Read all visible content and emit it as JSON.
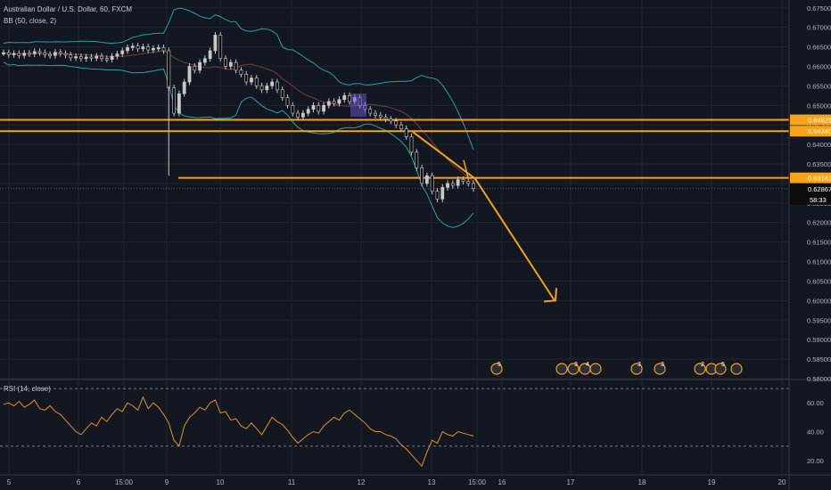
{
  "header": {
    "symbol_title": "Australian Dollar / U.S. Dollar, 60, FXCM",
    "bb_legend": "BB (50, close, 2)",
    "rsi_legend": "RSI (14, close)"
  },
  "colors": {
    "background": "#131722",
    "grid": "#1f2430",
    "axis_text": "#b2b5be",
    "candle": "#c8c8c8",
    "candle_body": "#0d0d0d",
    "bb_band": "#2f9ea1",
    "bb_basis": "#7a3b3b",
    "orange": "#f7a21b",
    "rsi_line": "#e0922a",
    "price_label_bg": "#f7a21b",
    "last_price_bg": "#0d0d0d"
  },
  "chart_data": {
    "type": "candlestick",
    "price_axis": {
      "ticks": [
        "0.67500",
        "0.67000",
        "0.66500",
        "0.66000",
        "0.65500",
        "0.65000",
        "0.64500",
        "0.64000",
        "0.63500",
        "0.63000",
        "0.62500",
        "0.62000",
        "0.61500",
        "0.61000",
        "0.60500",
        "0.60000",
        "0.59500",
        "0.59000",
        "0.58500",
        "0.58000"
      ],
      "range": [
        0.58,
        0.677
      ]
    },
    "time_axis": {
      "ticks": [
        {
          "label": "5",
          "x_index": 0
        },
        {
          "label": "6",
          "x_index": 1
        },
        {
          "label": "15:00",
          "x_index": 2
        },
        {
          "label": "9",
          "x_index": 3
        },
        {
          "label": "10",
          "x_index": 4
        },
        {
          "label": "11",
          "x_index": 5
        },
        {
          "label": "12",
          "x_index": 6
        },
        {
          "label": "13",
          "x_index": 7
        },
        {
          "label": "15:00",
          "x_index": 8
        },
        {
          "label": "16",
          "x_index": 9
        },
        {
          "label": "17",
          "x_index": 10
        },
        {
          "label": "18",
          "x_index": 11
        },
        {
          "label": "19",
          "x_index": 12
        },
        {
          "label": "20",
          "x_index": 13
        }
      ]
    },
    "price_lines": [
      {
        "label": "0.64629",
        "value": 0.64629
      },
      {
        "label": "0.64340",
        "value": 0.6434
      },
      {
        "label": "0.63143",
        "value": 0.63143
      }
    ],
    "last_price": {
      "label": "0.62867",
      "value": 0.62867,
      "countdown": "58:33"
    },
    "projection": {
      "from_price": 0.6432,
      "to_price": 0.6
    },
    "candles_close": [
      0.6635,
      0.663,
      0.6633,
      0.6628,
      0.6634,
      0.6632,
      0.6638,
      0.6635,
      0.663,
      0.6628,
      0.6636,
      0.6633,
      0.6629,
      0.6622,
      0.6625,
      0.662,
      0.6624,
      0.6621,
      0.6626,
      0.662,
      0.6618,
      0.6626,
      0.6632,
      0.664,
      0.6648,
      0.6652,
      0.6645,
      0.665,
      0.6642,
      0.6646,
      0.6648,
      0.664,
      0.6545,
      0.648,
      0.653,
      0.656,
      0.66,
      0.659,
      0.661,
      0.662,
      0.664,
      0.668,
      0.662,
      0.66,
      0.661,
      0.659,
      0.658,
      0.656,
      0.657,
      0.655,
      0.654,
      0.655,
      0.656,
      0.654,
      0.652,
      0.65,
      0.648,
      0.647,
      0.648,
      0.649,
      0.65,
      0.6485,
      0.65,
      0.651,
      0.6505,
      0.6515,
      0.6525,
      0.651,
      0.652,
      0.65,
      0.649,
      0.648,
      0.6475,
      0.647,
      0.6465,
      0.646,
      0.645,
      0.644,
      0.642,
      0.638,
      0.634,
      0.63,
      0.632,
      0.628,
      0.626,
      0.629,
      0.63,
      0.6295,
      0.631,
      0.6305,
      0.63,
      0.6287
    ],
    "rsi": {
      "ticks": [
        "60.00",
        "40.00",
        "20.00"
      ],
      "range": [
        10,
        75
      ],
      "overbought": 70,
      "oversold": 30,
      "values": [
        59,
        60,
        58,
        61,
        57,
        59,
        62,
        56,
        55,
        58,
        54,
        52,
        48,
        44,
        40,
        38,
        42,
        46,
        44,
        50,
        47,
        52,
        56,
        54,
        60,
        58,
        55,
        64,
        56,
        60,
        57,
        52,
        46,
        34,
        30,
        44,
        50,
        53,
        57,
        55,
        60,
        62,
        53,
        54,
        48,
        49,
        44,
        42,
        46,
        42,
        38,
        44,
        50,
        47,
        45,
        41,
        36,
        32,
        35,
        38,
        40,
        39,
        44,
        47,
        50,
        48,
        53,
        55,
        52,
        49,
        46,
        42,
        40,
        40,
        38,
        37,
        35,
        31,
        28,
        24,
        20,
        16,
        26,
        34,
        32,
        40,
        38,
        37,
        40,
        39,
        38,
        37
      ]
    }
  },
  "events": {
    "marker_count_labels": [
      "5",
      "3",
      "4",
      "3",
      "3",
      "2",
      "5"
    ]
  }
}
